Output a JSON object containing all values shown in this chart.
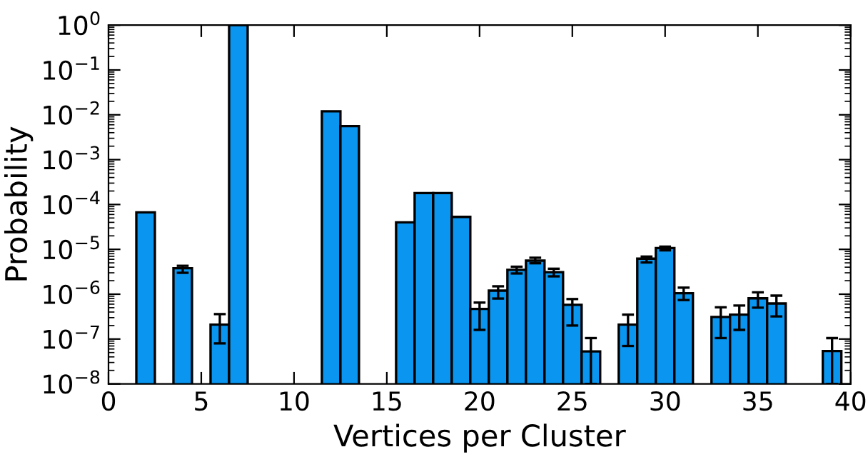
{
  "chart_data": {
    "type": "bar",
    "xlabel": "Vertices per Cluster",
    "ylabel": "Probability",
    "log": "y",
    "x": [
      2,
      4,
      6,
      7,
      12,
      13,
      16,
      17,
      18,
      19,
      20,
      21,
      22,
      23,
      24,
      25,
      26,
      28,
      29,
      30,
      31,
      33,
      34,
      35,
      36,
      39
    ],
    "values": [
      6.7e-05,
      3.8e-06,
      2.1e-07,
      1.0,
      0.012,
      0.0056,
      4e-05,
      0.00018,
      0.00018,
      5.3e-05,
      4.7e-07,
      1.2e-06,
      3.5e-06,
      5.6e-06,
      3.1e-06,
      5.8e-07,
      5.3e-08,
      2.1e-07,
      6.2e-06,
      1.07e-05,
      1.05e-06,
      3.1e-07,
      3.5e-07,
      8.1e-07,
      6.2e-07,
      5.4e-08
    ],
    "errors": [
      null,
      [
        3e-06,
        4.3e-06
      ],
      [
        8e-08,
        3.6e-07
      ],
      null,
      null,
      null,
      null,
      null,
      null,
      null,
      [
        1.6e-07,
        6.5e-07
      ],
      [
        8e-07,
        1.5e-06
      ],
      [
        2.9e-06,
        4.1e-06
      ],
      [
        4.9e-06,
        6.5e-06
      ],
      [
        2.5e-06,
        3.7e-06
      ],
      [
        2e-07,
        7.8e-07
      ],
      [
        1e-08,
        1.05e-07
      ],
      [
        7e-08,
        3.5e-07
      ],
      [
        5.1e-06,
        6.9e-06
      ],
      [
        9.5e-06,
        1.15e-05
      ],
      [
        7.4e-07,
        1.4e-06
      ],
      [
        1.05e-07,
        5.1e-07
      ],
      [
        1.6e-07,
        5.6e-07
      ],
      [
        5e-07,
        1.1e-06
      ],
      [
        3.2e-07,
        9.3e-07
      ],
      [
        1e-08,
        1.05e-07
      ]
    ],
    "color": "#0a96f0",
    "xlim": [
      0,
      40
    ],
    "xticks": [
      0,
      5,
      10,
      15,
      20,
      25,
      30,
      35,
      40
    ],
    "ylim": [
      1e-08,
      1
    ],
    "yticks": [
      {
        "value": 1e-08,
        "label": "10$^{−8}$"
      },
      {
        "value": 1e-07,
        "label": "10$^{−7}$"
      },
      {
        "value": 1e-06,
        "label": "10$^{−6}$"
      },
      {
        "value": 1e-05,
        "label": "10$^{−5}$"
      },
      {
        "value": 0.0001,
        "label": "10$^{−4}$"
      },
      {
        "value": 0.001,
        "label": "10$^{−3}$"
      },
      {
        "value": 0.01,
        "label": "10$^{−2}$"
      },
      {
        "value": 0.1,
        "label": "10$^{−1}$"
      },
      {
        "value": 1,
        "label": "10$^{0}$"
      }
    ]
  }
}
